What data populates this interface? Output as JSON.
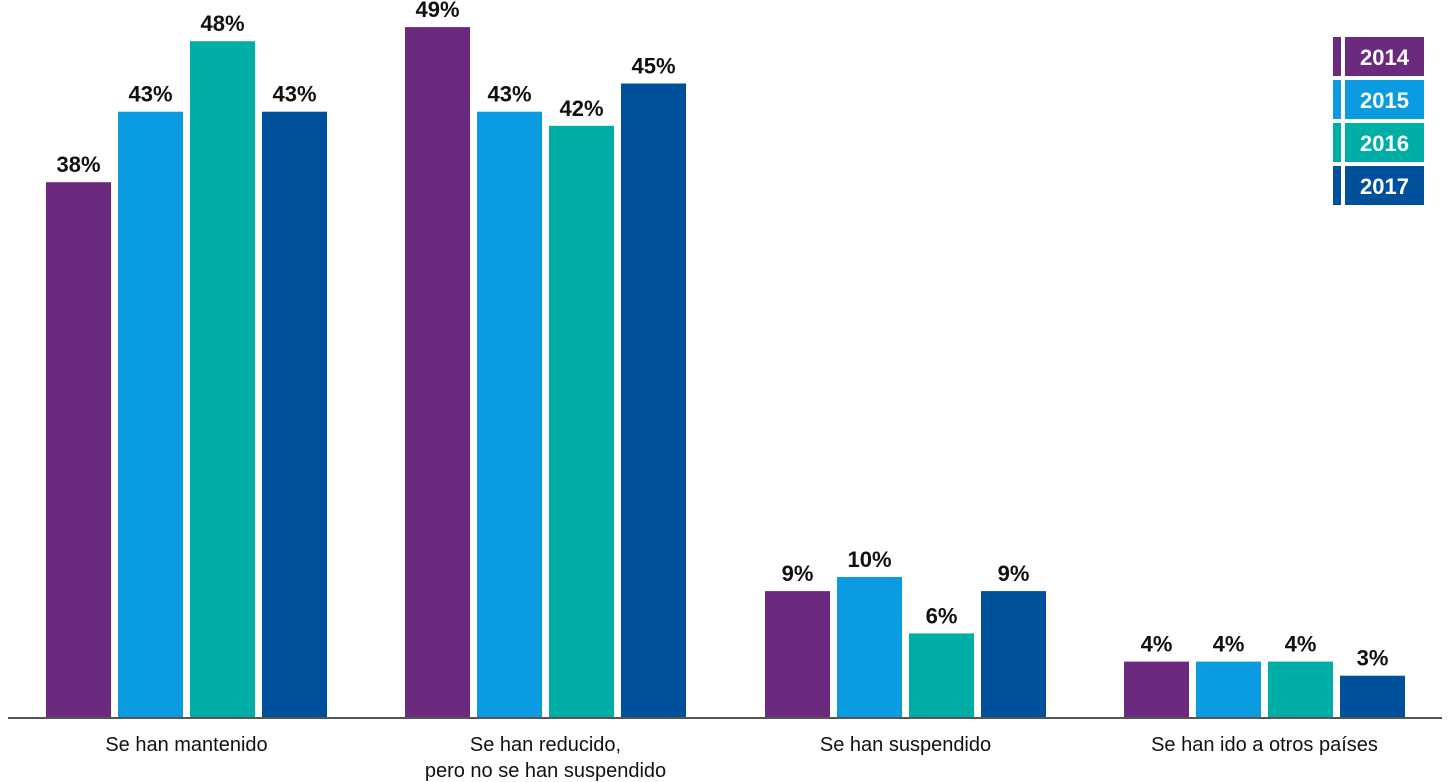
{
  "chart_data": {
    "type": "bar",
    "title": "",
    "xlabel": "",
    "ylabel": "",
    "ylim": [
      0,
      50
    ],
    "grid": false,
    "legend_position": "top-right",
    "categories": [
      [
        "Se han mantenido"
      ],
      [
        "Se han reducido,",
        "pero no se han suspendido"
      ],
      [
        "Se han suspendido"
      ],
      [
        "Se han ido a otros países"
      ]
    ],
    "series": [
      {
        "name": "2014",
        "color": "#6c2a7f",
        "values": [
          38,
          49,
          9,
          4
        ]
      },
      {
        "name": "2015",
        "color": "#0a9be0",
        "values": [
          43,
          43,
          10,
          4
        ]
      },
      {
        "name": "2016",
        "color": "#00aea8",
        "values": [
          48,
          42,
          6,
          4
        ]
      },
      {
        "name": "2017",
        "color": "#00509c",
        "values": [
          43,
          45,
          9,
          3
        ]
      }
    ],
    "value_suffix": "%"
  }
}
